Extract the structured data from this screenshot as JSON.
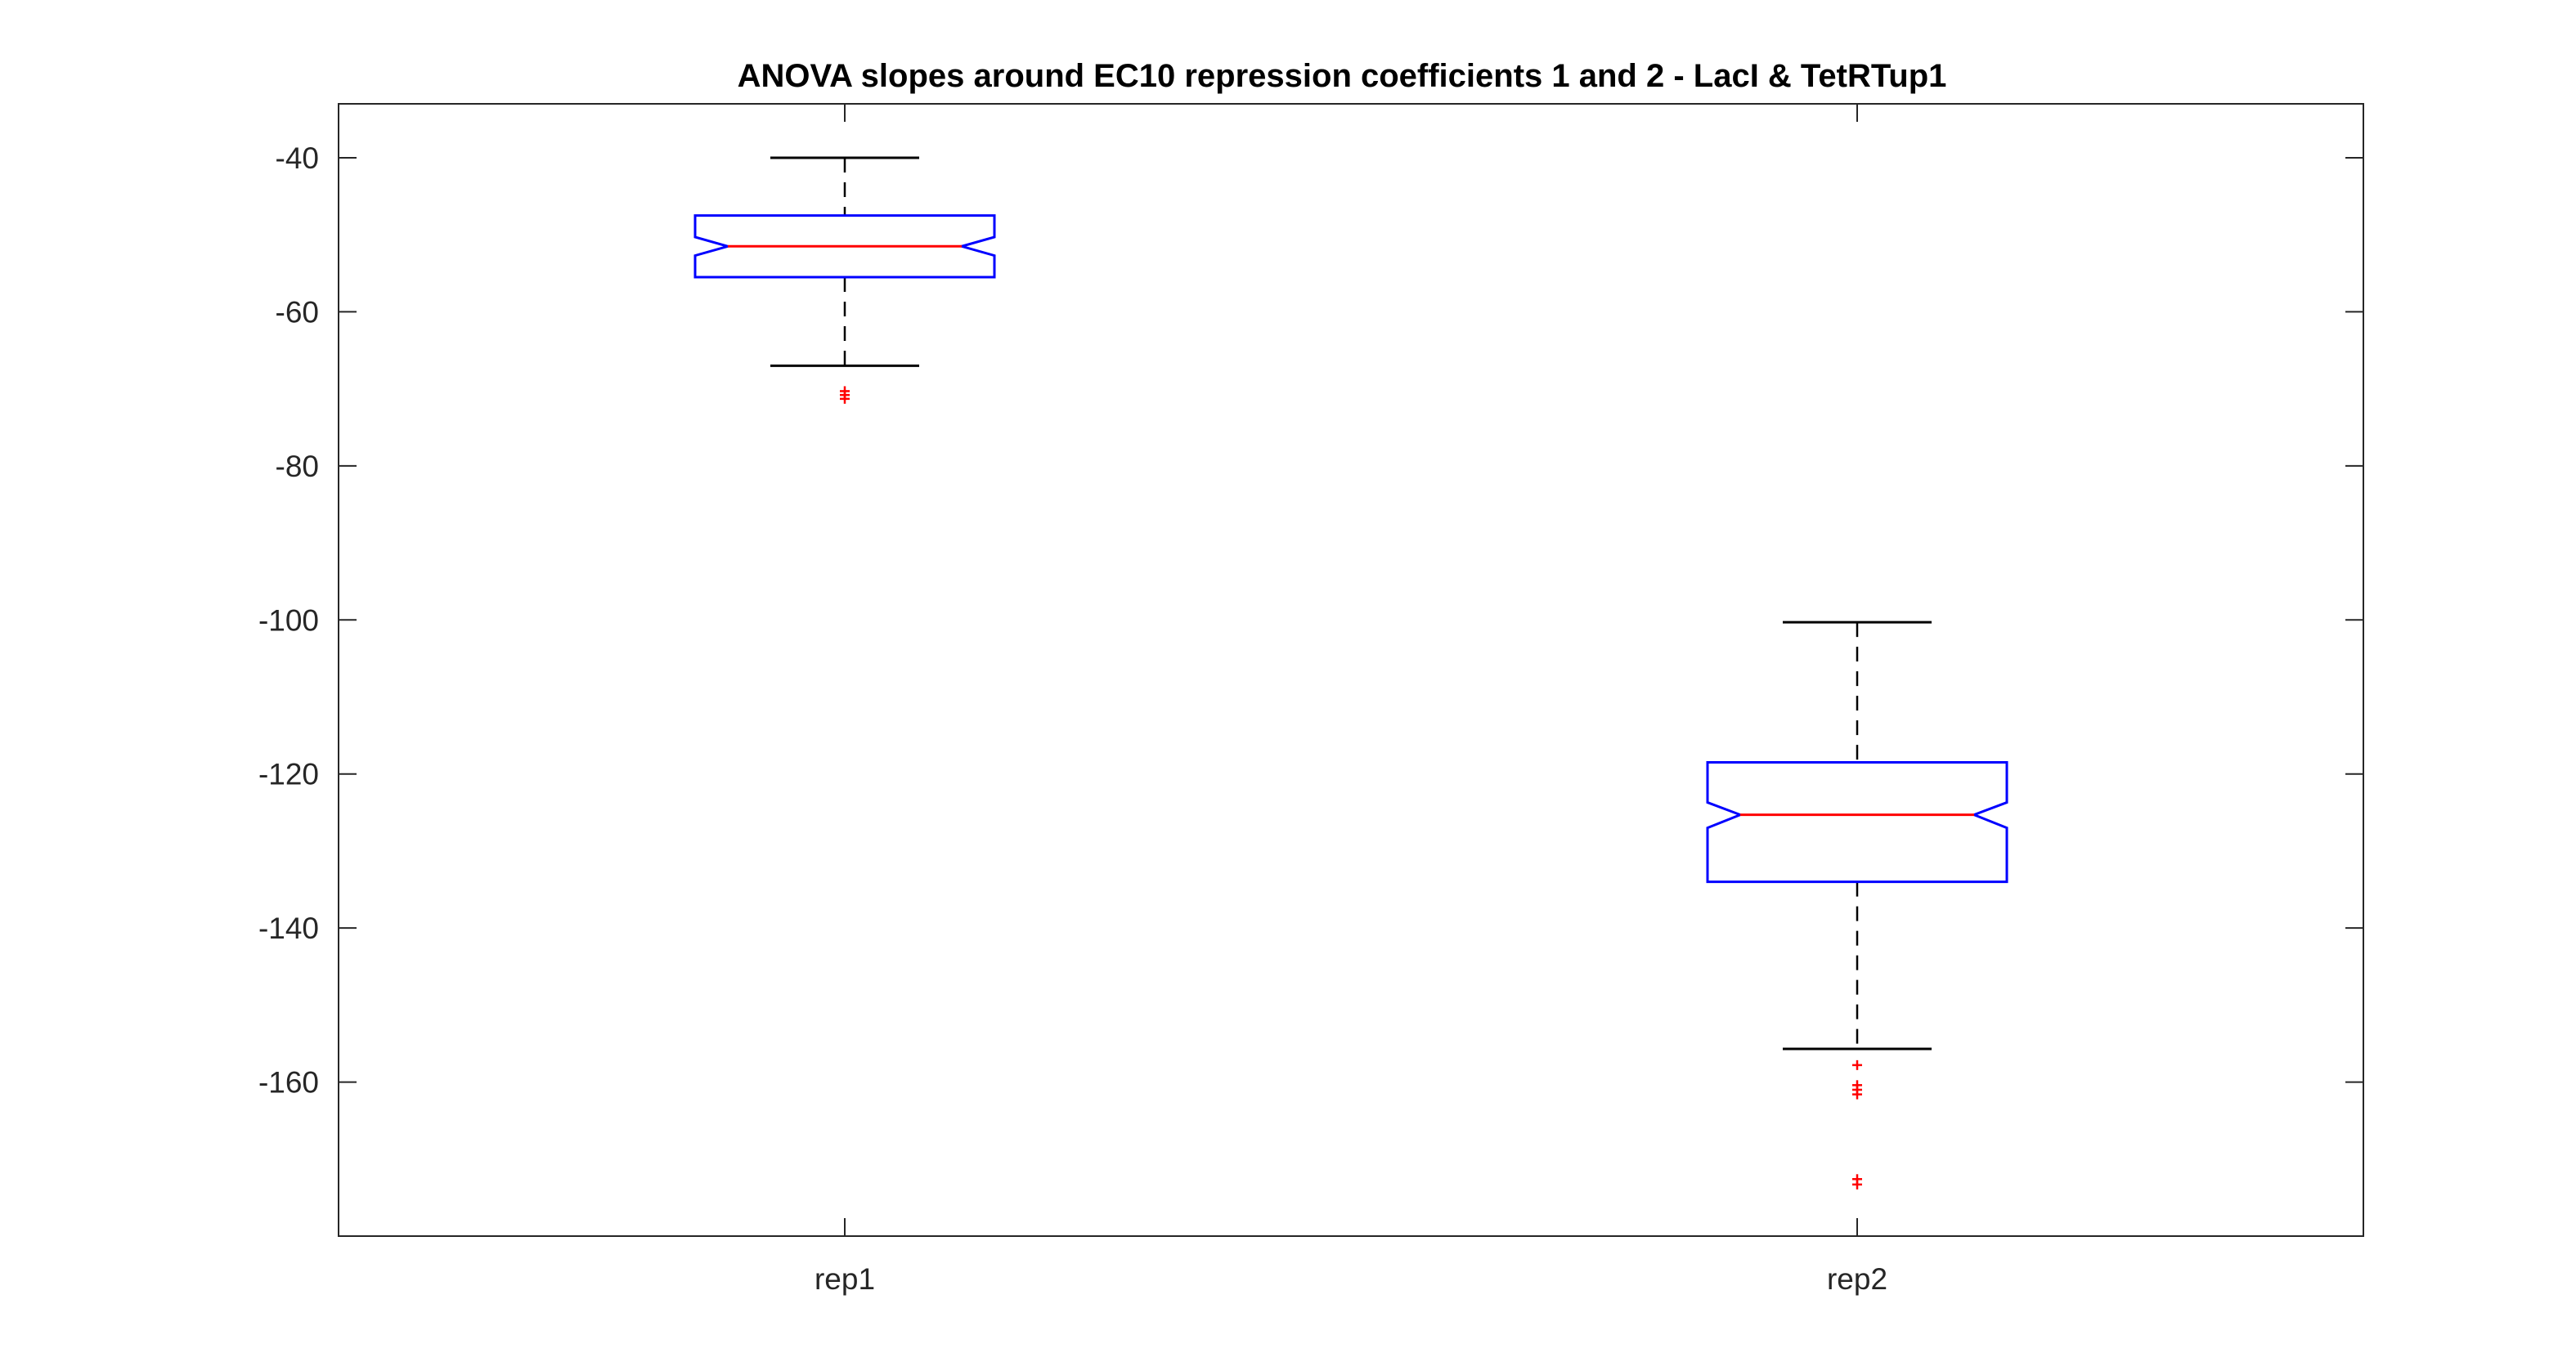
{
  "chart_data": {
    "type": "boxplot",
    "title": "ANOVA slopes around EC10 repression coefficients 1 and 2 - LacI & TetRTup1",
    "xlabel": "",
    "ylabel": "",
    "categories": [
      "rep1",
      "rep2"
    ],
    "ylim": [
      -180,
      -33
    ],
    "yticks": [
      -40,
      -60,
      -80,
      -100,
      -120,
      -140,
      -160
    ],
    "ytick_labels": [
      "-40",
      "-60",
      "-80",
      "-100",
      "-120",
      "-140",
      "-160"
    ],
    "grid": false,
    "notched": true,
    "boxes": [
      {
        "name": "rep1",
        "whisker_high": -40,
        "q3": -47.5,
        "median": -51.5,
        "q1": -55.5,
        "whisker_low": -67,
        "notch_high": -50.3,
        "notch_low": -52.7,
        "outliers": [
          -70.3,
          -70.8,
          -71.3
        ]
      },
      {
        "name": "rep2",
        "whisker_high": -100.3,
        "q3": -118.5,
        "median": -125.3,
        "q1": -134,
        "whisker_low": -155.7,
        "notch_high": -123.7,
        "notch_low": -127,
        "outliers": [
          -157.8,
          -160.4,
          -161,
          -161.6,
          -172.6,
          -173.3
        ]
      }
    ],
    "colors": {
      "box": "#0000ff",
      "median": "#ff0000",
      "whisker": "#000000",
      "outlier": "#ff0000",
      "axes": "#262626"
    }
  }
}
